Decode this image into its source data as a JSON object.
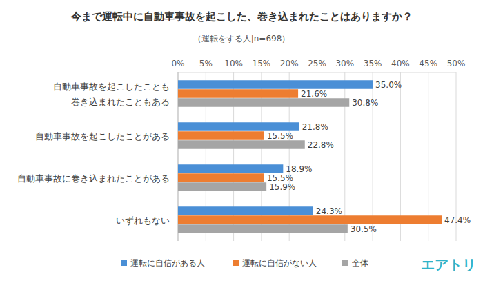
{
  "chart_data": {
    "type": "bar",
    "orientation": "horizontal",
    "title": "今まで運転中に自動車事故を起こした、巻き込まれたことはありますか？",
    "subtitle": "（運転をする人|n=698）",
    "logo": "エアトリ",
    "categories": [
      "自動車事故を起こしたことも\n巻き込まれたこともある",
      "自動車事故を起こしたことがある",
      "自動車事故に巻き込まれたことがある",
      "いずれもない"
    ],
    "series": [
      {
        "name": "運転に自信がある人",
        "color": "#4a8fd6",
        "values": [
          35.0,
          21.8,
          18.9,
          24.3
        ],
        "value_labels": [
          "35.0%",
          "21.8%",
          "18.9%",
          "24.3%"
        ]
      },
      {
        "name": "運転に自信がない人",
        "color": "#ed7d31",
        "values": [
          21.6,
          15.5,
          15.5,
          47.4
        ],
        "value_labels": [
          "21.6%",
          "15.5%",
          "15.5%",
          "47.4%"
        ]
      },
      {
        "name": "全体",
        "color": "#a5a5a5",
        "values": [
          30.8,
          22.8,
          15.9,
          30.5
        ],
        "value_labels": [
          "30.8%",
          "22.8%",
          "15.9%",
          "30.5%"
        ]
      }
    ],
    "xlim": [
      0,
      50
    ],
    "xticks": [
      {
        "value": 0,
        "label": "0%"
      },
      {
        "value": 5,
        "label": "5%"
      },
      {
        "value": 10,
        "label": "10%"
      },
      {
        "value": 15,
        "label": "15%"
      },
      {
        "value": 20,
        "label": "20%"
      },
      {
        "value": 25,
        "label": "25%"
      },
      {
        "value": 30,
        "label": "30%"
      },
      {
        "value": 35,
        "label": "35%"
      },
      {
        "value": 40,
        "label": "40%"
      },
      {
        "value": 45,
        "label": "45%"
      },
      {
        "value": 50,
        "label": "50%"
      }
    ],
    "grid": true,
    "data_labels": true,
    "legend": "bottom"
  }
}
